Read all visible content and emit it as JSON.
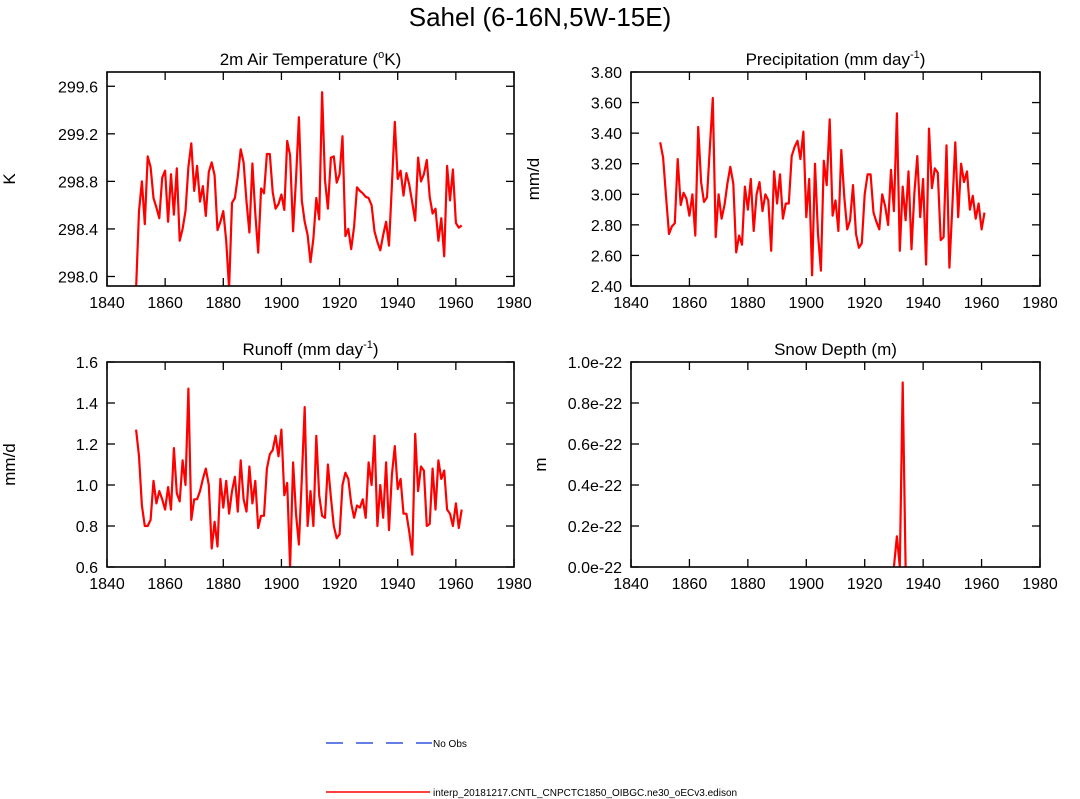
{
  "title": "Sahel (6-16N,5W-15E)",
  "legend": [
    {
      "label": "No Obs",
      "color": "#3355dd",
      "dash": true
    },
    {
      "label": "interp_20181217.CNTL_CNPCTC1850_OIBGC.ne30_oECv3.edison",
      "color": "#ff0000",
      "dash": false
    }
  ],
  "chart_data": [
    {
      "type": "line",
      "title": "2m Air Temperature (",
      "title_sup": "o",
      "title_after": "K)",
      "ylabel": "K",
      "xlim": [
        1840,
        1980
      ],
      "ylim": [
        297.92,
        299.72
      ],
      "xticks": [
        1840,
        1860,
        1880,
        1900,
        1920,
        1940,
        1960,
        1980
      ],
      "xtick_labels": [
        "1840",
        "1860",
        "1880",
        "1900",
        "1920",
        "1940",
        "1960",
        "1980"
      ],
      "yticks": [
        298.0,
        298.4,
        298.8,
        299.2,
        299.6
      ],
      "ytick_labels": [
        "298.0",
        "298.4",
        "298.8",
        "299.2",
        "299.6"
      ],
      "series": [
        {
          "name": "interp_20181217.CNTL_CNPCTC1850_OIBGC.ne30_oECv3.edison",
          "x0": 1850,
          "values": [
            297.9,
            298.55,
            298.8,
            298.44,
            299.01,
            298.92,
            298.66,
            298.58,
            298.49,
            298.83,
            298.89,
            298.46,
            298.86,
            298.52,
            298.91,
            298.3,
            298.4,
            298.55,
            298.92,
            299.12,
            298.72,
            298.93,
            298.63,
            298.76,
            298.51,
            298.88,
            298.96,
            298.85,
            298.39,
            298.46,
            298.55,
            298.3,
            297.9,
            298.62,
            298.66,
            298.84,
            299.07,
            298.96,
            298.63,
            298.37,
            298.95,
            298.53,
            298.2,
            298.74,
            298.7,
            299.03,
            299.03,
            298.71,
            298.57,
            298.61,
            298.69,
            298.56,
            299.14,
            299.02,
            298.38,
            298.82,
            299.34,
            298.64,
            298.46,
            298.35,
            298.12,
            298.32,
            298.66,
            298.48,
            299.55,
            298.81,
            298.57,
            299.0,
            299.01,
            298.79,
            298.86,
            299.18,
            298.34,
            298.4,
            298.23,
            298.42,
            298.75,
            298.72,
            298.7,
            298.67,
            298.66,
            298.6,
            298.38,
            298.29,
            298.22,
            298.35,
            298.46,
            298.26,
            298.77,
            299.3,
            298.82,
            298.89,
            298.68,
            298.87,
            298.77,
            298.62,
            298.47,
            299.0,
            298.8,
            298.86,
            298.98,
            298.67,
            298.53,
            298.57,
            298.3,
            298.49,
            298.17,
            298.93,
            298.64,
            298.9,
            298.45,
            298.41,
            298.43
          ]
        }
      ]
    },
    {
      "type": "line",
      "title": "Precipitation (mm day",
      "title_sup": "-1",
      "title_after": ")",
      "ylabel": "mm/d",
      "xlim": [
        1840,
        1980
      ],
      "ylim": [
        2.4,
        3.8
      ],
      "xticks": [
        1840,
        1860,
        1880,
        1900,
        1920,
        1940,
        1960,
        1980
      ],
      "xtick_labels": [
        "1840",
        "1860",
        "1880",
        "1900",
        "1920",
        "1940",
        "1960",
        "1980"
      ],
      "yticks": [
        2.4,
        2.6,
        2.8,
        3.0,
        3.2,
        3.4,
        3.6,
        3.8
      ],
      "ytick_labels": [
        "2.40",
        "2.60",
        "2.80",
        "3.00",
        "3.20",
        "3.40",
        "3.60",
        "3.80"
      ],
      "series": [
        {
          "name": "interp_20181217.CNTL_CNPCTC1850_OIBGC.ne30_oECv3.edison",
          "x0": 1850,
          "values": [
            3.34,
            3.24,
            2.98,
            2.74,
            2.79,
            2.81,
            3.23,
            2.93,
            3.01,
            2.97,
            2.86,
            3.0,
            2.73,
            3.44,
            3.08,
            2.95,
            2.98,
            3.31,
            3.63,
            2.72,
            3.0,
            2.84,
            2.93,
            3.07,
            3.18,
            3.07,
            2.62,
            2.73,
            2.67,
            3.05,
            2.9,
            3.1,
            2.76,
            3.0,
            3.08,
            2.89,
            3.0,
            2.96,
            2.63,
            3.15,
            2.94,
            3.13,
            2.84,
            2.94,
            2.94,
            3.25,
            3.31,
            3.35,
            3.23,
            3.41,
            2.85,
            3.1,
            2.47,
            3.2,
            2.74,
            2.5,
            3.22,
            3.06,
            3.49,
            2.86,
            2.96,
            2.76,
            3.29,
            2.98,
            2.77,
            2.83,
            3.06,
            2.74,
            2.65,
            2.68,
            3.0,
            3.13,
            3.13,
            2.88,
            2.82,
            2.77,
            3.0,
            2.92,
            2.8,
            3.16,
            2.89,
            3.53,
            2.63,
            3.05,
            2.83,
            3.15,
            2.64,
            3.01,
            3.25,
            2.85,
            3.1,
            2.54,
            3.43,
            3.04,
            3.17,
            3.14,
            2.7,
            2.72,
            3.32,
            2.52,
            2.93,
            3.34,
            2.85,
            3.2,
            3.08,
            3.15,
            2.9,
            2.99,
            2.84,
            2.94,
            2.77,
            2.88
          ]
        }
      ]
    },
    {
      "type": "line",
      "title": "Runoff (mm day",
      "title_sup": "-1",
      "title_after": ")",
      "ylabel": "mm/d",
      "xlim": [
        1840,
        1980
      ],
      "ylim": [
        0.6,
        1.6
      ],
      "xticks": [
        1840,
        1860,
        1880,
        1900,
        1920,
        1940,
        1960,
        1980
      ],
      "xtick_labels": [
        "1840",
        "1860",
        "1880",
        "1900",
        "1920",
        "1940",
        "1960",
        "1980"
      ],
      "yticks": [
        0.6,
        0.8,
        1.0,
        1.2,
        1.4,
        1.6
      ],
      "ytick_labels": [
        "0.6",
        "0.8",
        "1.0",
        "1.2",
        "1.4",
        "1.6"
      ],
      "series": [
        {
          "name": "interp_20181217.CNTL_CNPCTC1850_OIBGC.ne30_oECv3.edison",
          "x0": 1850,
          "values": [
            1.27,
            1.14,
            0.9,
            0.8,
            0.8,
            0.83,
            1.02,
            0.91,
            0.97,
            0.93,
            0.88,
            0.99,
            0.88,
            1.18,
            0.96,
            0.92,
            1.12,
            1.0,
            1.47,
            0.83,
            0.93,
            0.93,
            0.97,
            1.03,
            1.08,
            1.0,
            0.69,
            0.82,
            0.7,
            1.03,
            0.89,
            1.02,
            0.86,
            0.97,
            1.04,
            0.87,
            1.12,
            0.93,
            0.87,
            1.09,
            0.91,
            1.02,
            0.79,
            0.85,
            0.85,
            1.08,
            1.15,
            1.17,
            1.24,
            1.14,
            1.27,
            0.95,
            1.01,
            0.6,
            1.11,
            0.86,
            0.71,
            1.03,
            1.38,
            0.8,
            0.97,
            0.8,
            1.24,
            0.95,
            0.85,
            0.84,
            1.1,
            0.94,
            0.8,
            0.74,
            0.76,
            1.0,
            1.06,
            1.03,
            0.91,
            0.84,
            0.9,
            0.89,
            0.93,
            0.84,
            1.11,
            1.0,
            1.24,
            0.8,
            1.0,
            0.84,
            1.11,
            0.78,
            1.05,
            1.19,
            0.98,
            1.03,
            0.86,
            0.86,
            0.77,
            0.66,
            1.25,
            0.97,
            1.09,
            1.07,
            0.8,
            0.81,
            1.08,
            0.88,
            1.12,
            1.03,
            1.07,
            0.88,
            0.86,
            0.8,
            0.91,
            0.79,
            0.88
          ]
        }
      ]
    },
    {
      "type": "line",
      "title": "Snow Depth (m)",
      "title_sup": "",
      "title_after": "",
      "ylabel": "m",
      "xlim": [
        1840,
        1980
      ],
      "ylim": [
        0.0,
        1.0
      ],
      "value_scale": "1e-22",
      "xticks": [
        1840,
        1860,
        1880,
        1900,
        1920,
        1940,
        1960,
        1980
      ],
      "xtick_labels": [
        "1840",
        "1860",
        "1880",
        "1900",
        "1920",
        "1940",
        "1960",
        "1980"
      ],
      "yticks": [
        0.0,
        0.2,
        0.4,
        0.6,
        0.8,
        1.0
      ],
      "ytick_labels": [
        "0.0e-22",
        "0.2e-22",
        "0.4e-22",
        "0.6e-22",
        "0.8e-22",
        "1.0e-22"
      ],
      "series": [
        {
          "name": "interp_20181217.CNTL_CNPCTC1850_OIBGC.ne30_oECv3.edison",
          "x0": 1930,
          "values": [
            0.0,
            0.15,
            0.0,
            0.9,
            0.0
          ]
        }
      ]
    }
  ]
}
